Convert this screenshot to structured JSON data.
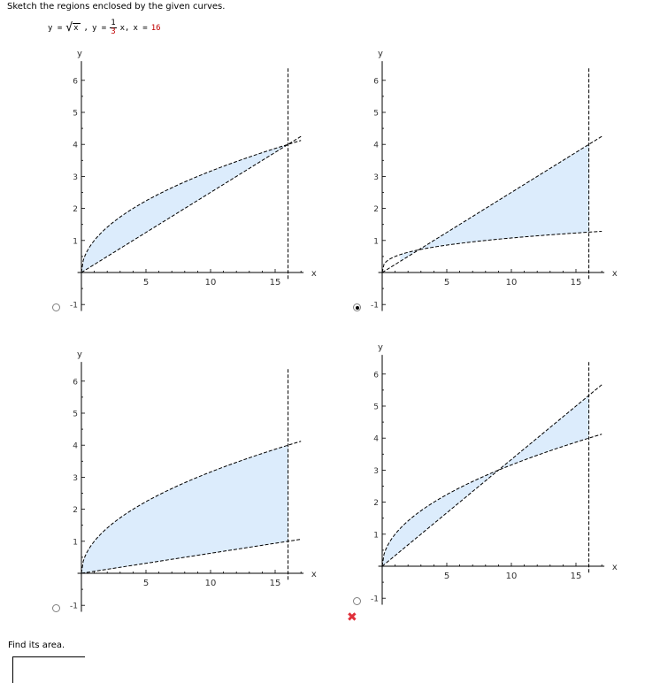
{
  "question": {
    "prompt": "Sketch the regions enclosed by the given curves.",
    "eq1_lhs": "y =",
    "eq1_arg": "x",
    "eq2_lhs": "y =",
    "eq2_num": "1",
    "eq2_den": "3",
    "eq2_tail": "x,",
    "eq3_lhs": "x =",
    "eq3_val": "16"
  },
  "graph_labels": {
    "x_axis": "x",
    "y_axis": "y"
  },
  "options": [
    {
      "id": "a",
      "selected": false,
      "chart_data": {
        "type": "area",
        "curves": [
          "y = sqrt(x)",
          "y = x/4",
          "x = 16"
        ],
        "shaded_region": "between y = sqrt(x) and y = x/4 for 0 <= x <= 16",
        "xlim": [
          0,
          17
        ],
        "ylim": [
          -1,
          6.5
        ],
        "x_ticks": [
          "5",
          "10",
          "15"
        ],
        "y_ticks": [
          "-1",
          "1",
          "2",
          "3",
          "4",
          "5",
          "6"
        ],
        "xlabel": "x",
        "ylabel": "y"
      }
    },
    {
      "id": "b",
      "selected": true,
      "chart_data": {
        "type": "area",
        "curves": [
          "y = cbrt(x)/2",
          "y = x/4",
          "x = 16"
        ],
        "shaded_region": "between y = cbrt(x)/2 and y = x/4 from x = 1.4 to x = 16",
        "xlim": [
          0,
          17
        ],
        "ylim": [
          -1,
          6.5
        ],
        "x_ticks": [
          "5",
          "10",
          "15"
        ],
        "y_ticks": [
          "-1",
          "1",
          "2",
          "3",
          "4",
          "5",
          "6"
        ],
        "xlabel": "x",
        "ylabel": "y"
      }
    },
    {
      "id": "c",
      "selected": false,
      "chart_data": {
        "type": "area",
        "curves": [
          "y = sqrt(x)",
          "y = x/16",
          "x = 16"
        ],
        "shaded_region": "between y = sqrt(x) and y = x/16 for 0 <= x <= 16",
        "xlim": [
          0,
          17
        ],
        "ylim": [
          -1,
          6.5
        ],
        "x_ticks": [
          "5",
          "10",
          "15"
        ],
        "y_ticks": [
          "-1",
          "1",
          "2",
          "3",
          "4",
          "5",
          "6"
        ],
        "xlabel": "x",
        "ylabel": "y"
      }
    },
    {
      "id": "d",
      "selected": false,
      "chart_data": {
        "type": "area",
        "curves": [
          "y = sqrt(x)",
          "y = x/3",
          "x = 16"
        ],
        "shaded_region": "between y = sqrt(x) and y = x/3 for 0 <= x <= 16",
        "xlim": [
          0,
          17
        ],
        "ylim": [
          -1,
          6.5
        ],
        "x_ticks": [
          "5",
          "10",
          "15"
        ],
        "y_ticks": [
          "-1",
          "1",
          "2",
          "3",
          "4",
          "5",
          "6"
        ],
        "xlabel": "x",
        "ylabel": "y"
      }
    }
  ],
  "feedback": {
    "icon": "incorrect-x-icon",
    "symbol": "✖"
  },
  "area_question": {
    "prompt": "Find its area.",
    "answer_value": ""
  },
  "colors": {
    "shade": "#dcecfc",
    "curve": "#000000",
    "answer_mark": "#e0303a",
    "given_value": "#c00000"
  }
}
